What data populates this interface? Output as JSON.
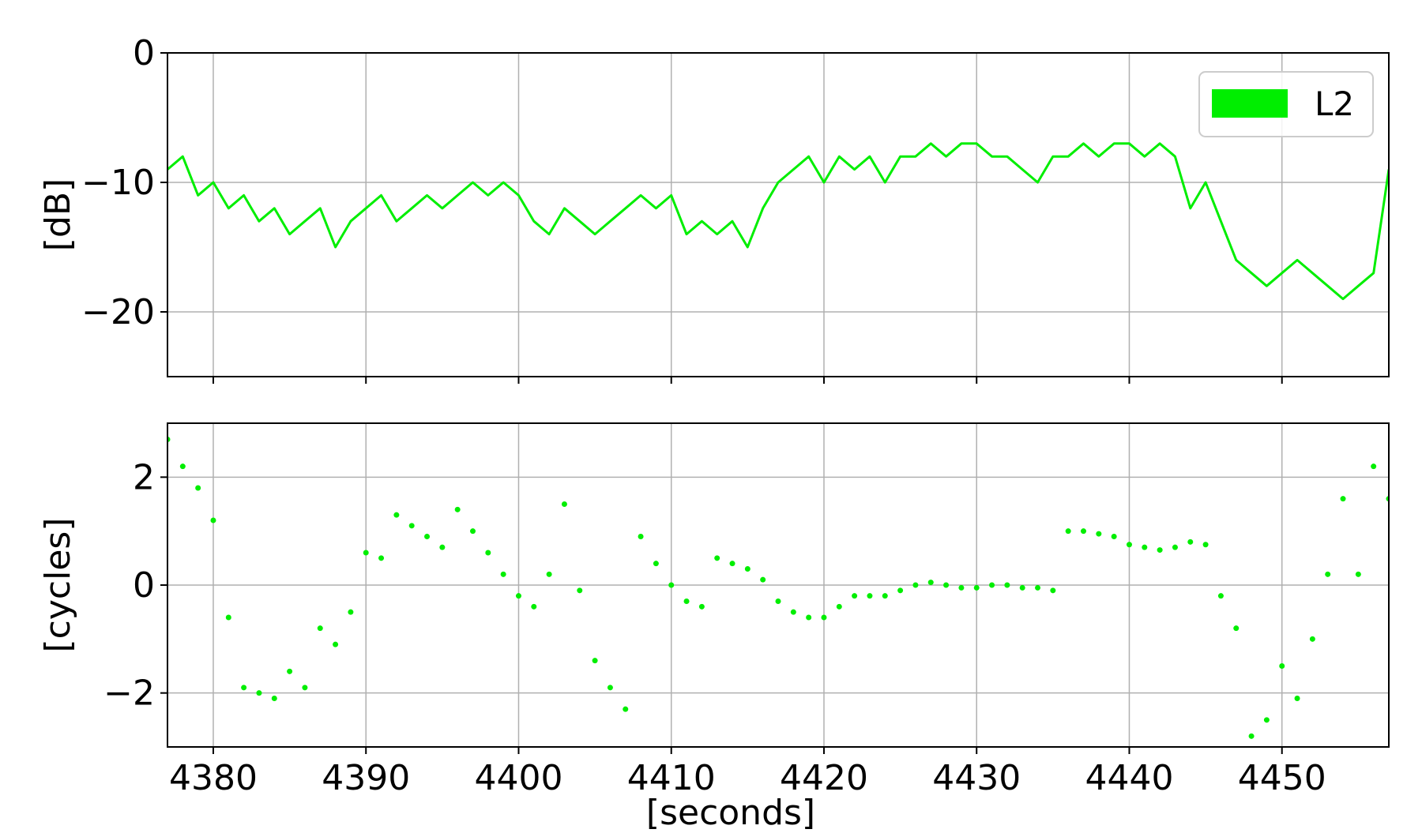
{
  "chart_data": [
    {
      "type": "line",
      "ylabel": "[dB]",
      "xlabel": "",
      "xlim": [
        4377,
        4457
      ],
      "ylim": [
        -25,
        0
      ],
      "x_ticks": [
        4380,
        4390,
        4400,
        4410,
        4420,
        4430,
        4440,
        4450
      ],
      "y_ticks": [
        0,
        -10,
        -20
      ],
      "y_tick_labels": [
        "0",
        "−10",
        "−20"
      ],
      "grid": true,
      "legend": {
        "position": "top-right",
        "entries": [
          "L2"
        ]
      },
      "series": [
        {
          "name": "L2",
          "color": "#00ee00",
          "x": [
            4377,
            4378,
            4379,
            4380,
            4381,
            4382,
            4383,
            4384,
            4385,
            4386,
            4387,
            4388,
            4389,
            4390,
            4391,
            4392,
            4393,
            4394,
            4395,
            4396,
            4397,
            4398,
            4399,
            4400,
            4401,
            4402,
            4403,
            4404,
            4405,
            4406,
            4407,
            4408,
            4409,
            4410,
            4411,
            4412,
            4413,
            4414,
            4415,
            4416,
            4417,
            4418,
            4419,
            4420,
            4421,
            4422,
            4423,
            4424,
            4425,
            4426,
            4427,
            4428,
            4429,
            4430,
            4431,
            4432,
            4433,
            4434,
            4435,
            4436,
            4437,
            4438,
            4439,
            4440,
            4441,
            4442,
            4443,
            4444,
            4445,
            4446,
            4447,
            4448,
            4449,
            4450,
            4451,
            4452,
            4453,
            4454,
            4455,
            4456,
            4457
          ],
          "values": [
            -9,
            -8,
            -11,
            -10,
            -12,
            -11,
            -13,
            -12,
            -14,
            -13,
            -12,
            -15,
            -13,
            -12,
            -11,
            -13,
            -12,
            -11,
            -12,
            -11,
            -10,
            -11,
            -10,
            -11,
            -13,
            -14,
            -12,
            -13,
            -14,
            -13,
            -12,
            -11,
            -12,
            -11,
            -14,
            -13,
            -14,
            -13,
            -15,
            -12,
            -10,
            -9,
            -8,
            -10,
            -8,
            -9,
            -8,
            -10,
            -8,
            -8,
            -7,
            -8,
            -7,
            -7,
            -8,
            -8,
            -9,
            -10,
            -8,
            -8,
            -7,
            -8,
            -7,
            -7,
            -8,
            -7,
            -8,
            -12,
            -10,
            -13,
            -16,
            -17,
            -18,
            -17,
            -16,
            -17,
            -18,
            -19,
            -18,
            -17,
            -9
          ]
        }
      ]
    },
    {
      "type": "scatter",
      "ylabel": "[cycles]",
      "xlabel": "[seconds]",
      "xlim": [
        4377,
        4457
      ],
      "ylim": [
        -3,
        3
      ],
      "x_ticks": [
        4380,
        4390,
        4400,
        4410,
        4420,
        4430,
        4440,
        4450
      ],
      "x_tick_labels": [
        "4380",
        "4390",
        "4400",
        "4410",
        "4420",
        "4430",
        "4440",
        "4450"
      ],
      "y_ticks": [
        2,
        0,
        -2
      ],
      "y_tick_labels": [
        "2",
        "0",
        "−2"
      ],
      "grid": true,
      "series": [
        {
          "color": "#00ee00",
          "x": [
            4377,
            4378,
            4379,
            4380,
            4381,
            4382,
            4383,
            4384,
            4385,
            4386,
            4387,
            4388,
            4389,
            4390,
            4391,
            4392,
            4393,
            4394,
            4395,
            4396,
            4397,
            4398,
            4399,
            4400,
            4401,
            4402,
            4403,
            4404,
            4405,
            4406,
            4407,
            4408,
            4409,
            4410,
            4411,
            4412,
            4413,
            4414,
            4415,
            4416,
            4417,
            4418,
            4419,
            4420,
            4421,
            4422,
            4423,
            4424,
            4425,
            4426,
            4427,
            4428,
            4429,
            4430,
            4431,
            4432,
            4433,
            4434,
            4435,
            4436,
            4437,
            4438,
            4439,
            4440,
            4441,
            4442,
            4443,
            4444,
            4445,
            4446,
            4447,
            4448,
            4449,
            4450,
            4451,
            4452,
            4453,
            4454,
            4455,
            4456,
            4457
          ],
          "values": [
            2.7,
            2.2,
            1.8,
            1.2,
            -0.6,
            -1.9,
            -2.0,
            -2.1,
            -1.6,
            -1.9,
            -0.8,
            -1.1,
            -0.5,
            0.6,
            0.5,
            1.3,
            1.1,
            0.9,
            0.7,
            1.4,
            1.0,
            0.6,
            0.2,
            -0.2,
            -0.4,
            0.2,
            1.5,
            -0.1,
            -1.4,
            -1.9,
            -2.3,
            0.9,
            0.4,
            0.0,
            -0.3,
            -0.4,
            0.5,
            0.4,
            0.3,
            0.1,
            -0.3,
            -0.5,
            -0.6,
            -0.6,
            -0.4,
            -0.2,
            -0.2,
            -0.2,
            -0.1,
            0.0,
            0.05,
            0.0,
            -0.05,
            -0.05,
            0.0,
            0.0,
            -0.05,
            -0.05,
            -0.1,
            1.0,
            1.0,
            0.95,
            0.9,
            0.75,
            0.7,
            0.65,
            0.7,
            0.8,
            0.75,
            -0.2,
            -0.8,
            -2.8,
            -2.5,
            -1.5,
            -2.1,
            -1.0,
            0.2,
            1.6,
            0.2,
            2.2,
            1.6
          ]
        }
      ]
    }
  ]
}
